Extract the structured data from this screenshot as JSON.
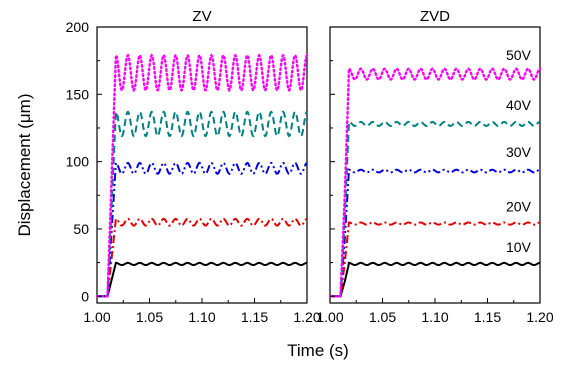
{
  "chart_data": [
    {
      "type": "line",
      "title": "ZV",
      "xlabel": "Time (s)",
      "ylabel": "Displacement (μm)",
      "xlim": [
        1.0,
        1.2
      ],
      "ylim": [
        -5,
        200
      ],
      "x_ticks": [
        "1.00",
        "1.05",
        "1.10",
        "1.15",
        "1.20"
      ],
      "y_ticks": [
        "0",
        "50",
        "100",
        "150",
        "200"
      ],
      "series": [
        {
          "name": "10V",
          "color": "#000000",
          "dash": "solid",
          "start": 0,
          "mean": 24,
          "amp": 0.8,
          "periods": 16,
          "settle": false
        },
        {
          "name": "20V",
          "color": "#e00000",
          "dash": "dashdot",
          "start": 0,
          "mean": 55,
          "amp": 2.5,
          "periods": 16,
          "settle": false
        },
        {
          "name": "30V",
          "color": "#0000dd",
          "dash": "dashdotdot",
          "start": 0,
          "mean": 95,
          "amp": 4,
          "periods": 16,
          "settle": false
        },
        {
          "name": "40V",
          "color": "#008080",
          "dash": "dash",
          "start": 0,
          "mean": 128,
          "amp": 9,
          "periods": 16,
          "settle": false
        },
        {
          "name": "50V",
          "color": "#ff00ff",
          "dash": "dot",
          "start": 0,
          "mean": 166,
          "amp": 13,
          "periods": 16,
          "settle": false
        }
      ]
    },
    {
      "type": "line",
      "title": "ZVD",
      "xlabel": "Time (s)",
      "ylabel": "",
      "xlim": [
        1.0,
        1.2
      ],
      "ylim": [
        -5,
        200
      ],
      "x_ticks": [
        "1.00",
        "1.05",
        "1.10",
        "1.15",
        "1.20"
      ],
      "y_ticks": [],
      "series": [
        {
          "name": "10V",
          "color": "#000000",
          "dash": "solid",
          "start": 0,
          "mean": 24,
          "amp": 0.8,
          "periods": 16,
          "settle": true
        },
        {
          "name": "20V",
          "color": "#e00000",
          "dash": "dashdot",
          "start": 0,
          "mean": 54,
          "amp": 0.8,
          "periods": 16,
          "settle": true
        },
        {
          "name": "30V",
          "color": "#0000dd",
          "dash": "dashdotdot",
          "start": 0,
          "mean": 93,
          "amp": 1.0,
          "periods": 16,
          "settle": true
        },
        {
          "name": "40V",
          "color": "#008080",
          "dash": "dash",
          "start": 0,
          "mean": 128,
          "amp": 1.5,
          "periods": 16,
          "settle": true
        },
        {
          "name": "50V",
          "color": "#ff00ff",
          "dash": "dot",
          "start": 0,
          "mean": 165,
          "amp": 4,
          "periods": 16,
          "settle": true
        }
      ]
    }
  ]
}
